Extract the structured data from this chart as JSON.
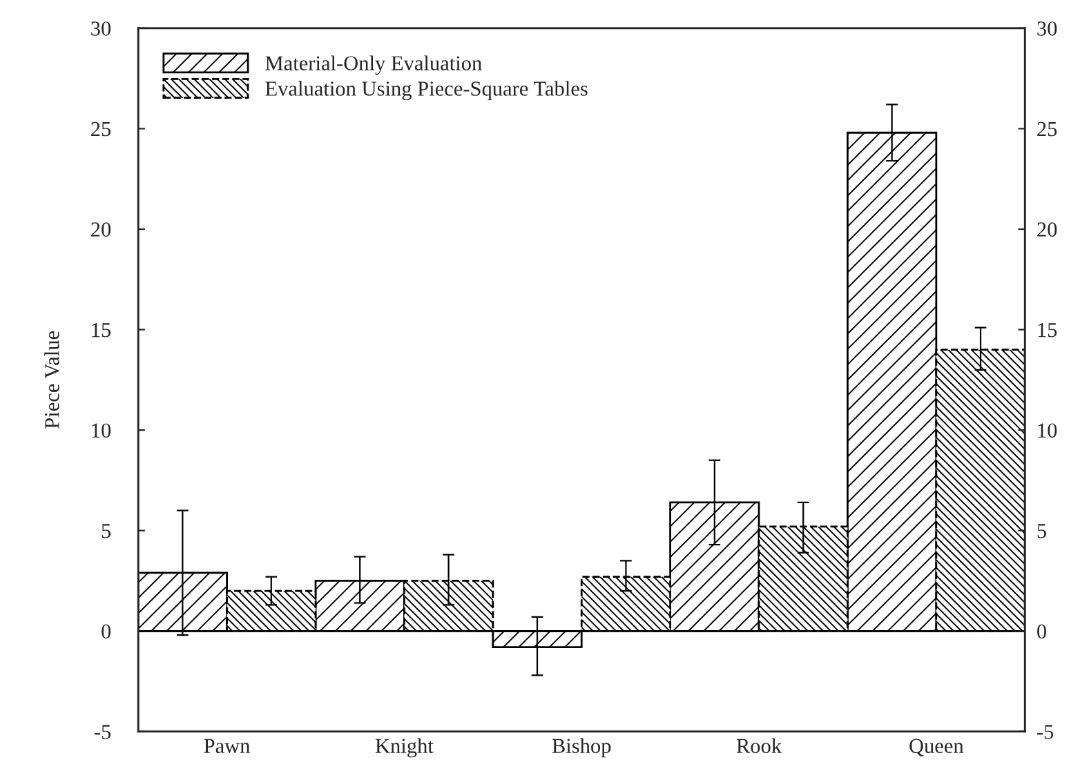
{
  "chart_data": {
    "type": "bar",
    "ylabel": "Piece Value",
    "categories": [
      "Pawn",
      "Knight",
      "Bishop",
      "Rook",
      "Queen"
    ],
    "series": [
      {
        "name": "Material-Only Evaluation",
        "color": "#000000",
        "values": [
          2.9,
          2.5,
          -0.8,
          6.4,
          24.8
        ],
        "errors": [
          [
            -0.2,
            6.0
          ],
          [
            1.4,
            3.7
          ],
          [
            -2.2,
            0.7
          ],
          [
            4.3,
            8.5
          ],
          [
            23.4,
            26.2
          ]
        ]
      },
      {
        "name": "Evaluation Using Piece-Square Tables",
        "color": "#000000",
        "values": [
          2.0,
          2.5,
          2.7,
          5.2,
          14.0
        ],
        "errors": [
          [
            1.3,
            2.7
          ],
          [
            1.3,
            3.8
          ],
          [
            2.0,
            3.5
          ],
          [
            3.9,
            6.4
          ],
          [
            13.0,
            15.1
          ]
        ]
      }
    ],
    "ylim": [
      -5,
      30
    ],
    "yticks": [
      -5,
      0,
      5,
      10,
      15,
      20,
      25,
      30
    ],
    "y2lim": [
      -5,
      30
    ],
    "y2ticks": [
      -5,
      0,
      5,
      10,
      15,
      20,
      25,
      30
    ],
    "ref_lines": [
      {
        "axis": "y",
        "value": 0
      }
    ],
    "legend": "top left"
  }
}
